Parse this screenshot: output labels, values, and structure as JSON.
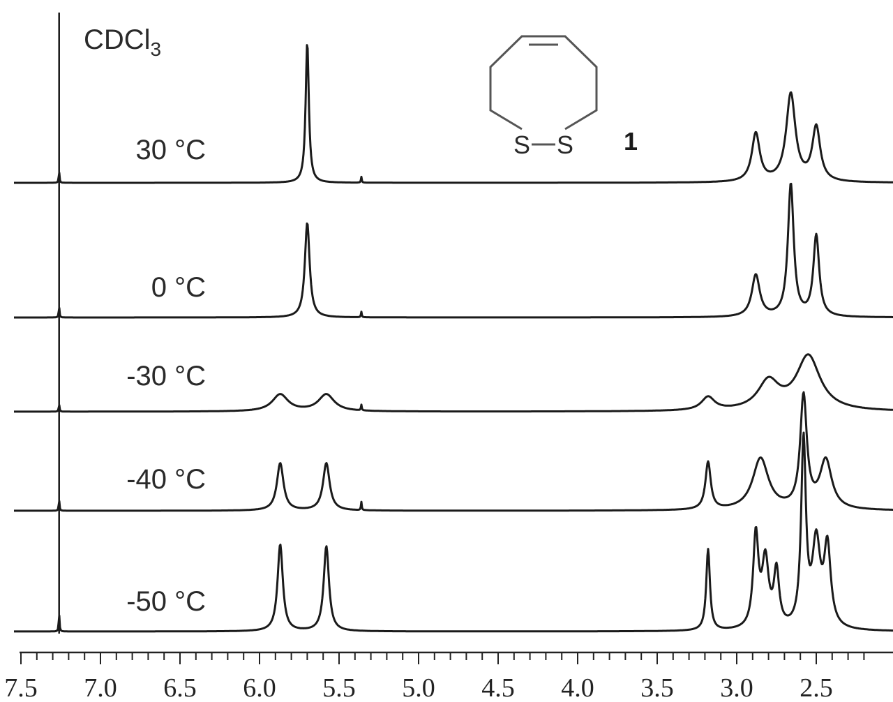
{
  "chart_data": {
    "type": "line",
    "title": "",
    "xlabel": "",
    "ylabel": "",
    "x_axis": {
      "range": [
        7.5,
        2.25
      ],
      "reversed": true,
      "ticks": [
        7.5,
        7.0,
        6.5,
        6.0,
        5.5,
        5.0,
        4.5,
        4.0,
        3.5,
        3.0,
        2.5
      ],
      "tick_labels": [
        "7.5",
        "7.0",
        "6.5",
        "6.0",
        "5.5",
        "5.0",
        "4.5",
        "4.0",
        "3.5",
        "3.0",
        "2.5"
      ]
    },
    "grid": false,
    "solvent": {
      "text": "CDCl",
      "sub": "3",
      "peak_ppm": 7.26
    },
    "molecule": {
      "left_atom": "S",
      "right_atom": "S",
      "compound_label": "1"
    },
    "series": [
      {
        "name": "30 °C",
        "peaks": [
          {
            "ppm": 7.26,
            "height": 0.08,
            "width": 0.003
          },
          {
            "ppm": 5.36,
            "height": 0.04,
            "width": 0.003
          },
          {
            "ppm": 5.7,
            "height": 0.96,
            "width": 0.012
          },
          {
            "ppm": 2.88,
            "height": 0.33,
            "width": 0.03
          },
          {
            "ppm": 2.66,
            "height": 0.6,
            "width": 0.035
          },
          {
            "ppm": 2.5,
            "height": 0.37,
            "width": 0.03
          }
        ]
      },
      {
        "name": "0 °C",
        "peaks": [
          {
            "ppm": 7.26,
            "height": 0.08,
            "width": 0.003
          },
          {
            "ppm": 5.36,
            "height": 0.04,
            "width": 0.003
          },
          {
            "ppm": 5.7,
            "height": 0.68,
            "width": 0.018
          },
          {
            "ppm": 2.88,
            "height": 0.3,
            "width": 0.03
          },
          {
            "ppm": 2.66,
            "height": 0.95,
            "width": 0.022
          },
          {
            "ppm": 2.5,
            "height": 0.58,
            "width": 0.022
          }
        ]
      },
      {
        "name": "-30 °C",
        "peaks": [
          {
            "ppm": 7.26,
            "height": 0.08,
            "width": 0.003
          },
          {
            "ppm": 5.36,
            "height": 0.06,
            "width": 0.003
          },
          {
            "ppm": 5.87,
            "height": 0.18,
            "width": 0.06
          },
          {
            "ppm": 5.58,
            "height": 0.18,
            "width": 0.06
          },
          {
            "ppm": 3.18,
            "height": 0.14,
            "width": 0.05
          },
          {
            "ppm": 2.8,
            "height": 0.3,
            "width": 0.08
          },
          {
            "ppm": 2.55,
            "height": 0.58,
            "width": 0.09
          }
        ]
      },
      {
        "name": "-40 °C",
        "peaks": [
          {
            "ppm": 7.26,
            "height": 0.08,
            "width": 0.003
          },
          {
            "ppm": 5.36,
            "height": 0.06,
            "width": 0.003
          },
          {
            "ppm": 5.87,
            "height": 0.34,
            "width": 0.025
          },
          {
            "ppm": 5.58,
            "height": 0.34,
            "width": 0.025
          },
          {
            "ppm": 3.18,
            "height": 0.34,
            "width": 0.02
          },
          {
            "ppm": 2.85,
            "height": 0.37,
            "width": 0.06
          },
          {
            "ppm": 2.58,
            "height": 0.8,
            "width": 0.025
          },
          {
            "ppm": 2.44,
            "height": 0.35,
            "width": 0.045
          }
        ]
      },
      {
        "name": "-50 °C",
        "peaks": [
          {
            "ppm": 7.26,
            "height": 0.1,
            "width": 0.003
          },
          {
            "ppm": 5.87,
            "height": 0.47,
            "width": 0.02
          },
          {
            "ppm": 5.58,
            "height": 0.46,
            "width": 0.02
          },
          {
            "ppm": 3.18,
            "height": 0.44,
            "width": 0.014
          },
          {
            "ppm": 2.88,
            "height": 0.5,
            "width": 0.02
          },
          {
            "ppm": 2.82,
            "height": 0.36,
            "width": 0.025
          },
          {
            "ppm": 2.75,
            "height": 0.3,
            "width": 0.02
          },
          {
            "ppm": 2.58,
            "height": 1.0,
            "width": 0.018
          },
          {
            "ppm": 2.5,
            "height": 0.45,
            "width": 0.03
          },
          {
            "ppm": 2.43,
            "height": 0.43,
            "width": 0.025
          }
        ]
      }
    ]
  }
}
